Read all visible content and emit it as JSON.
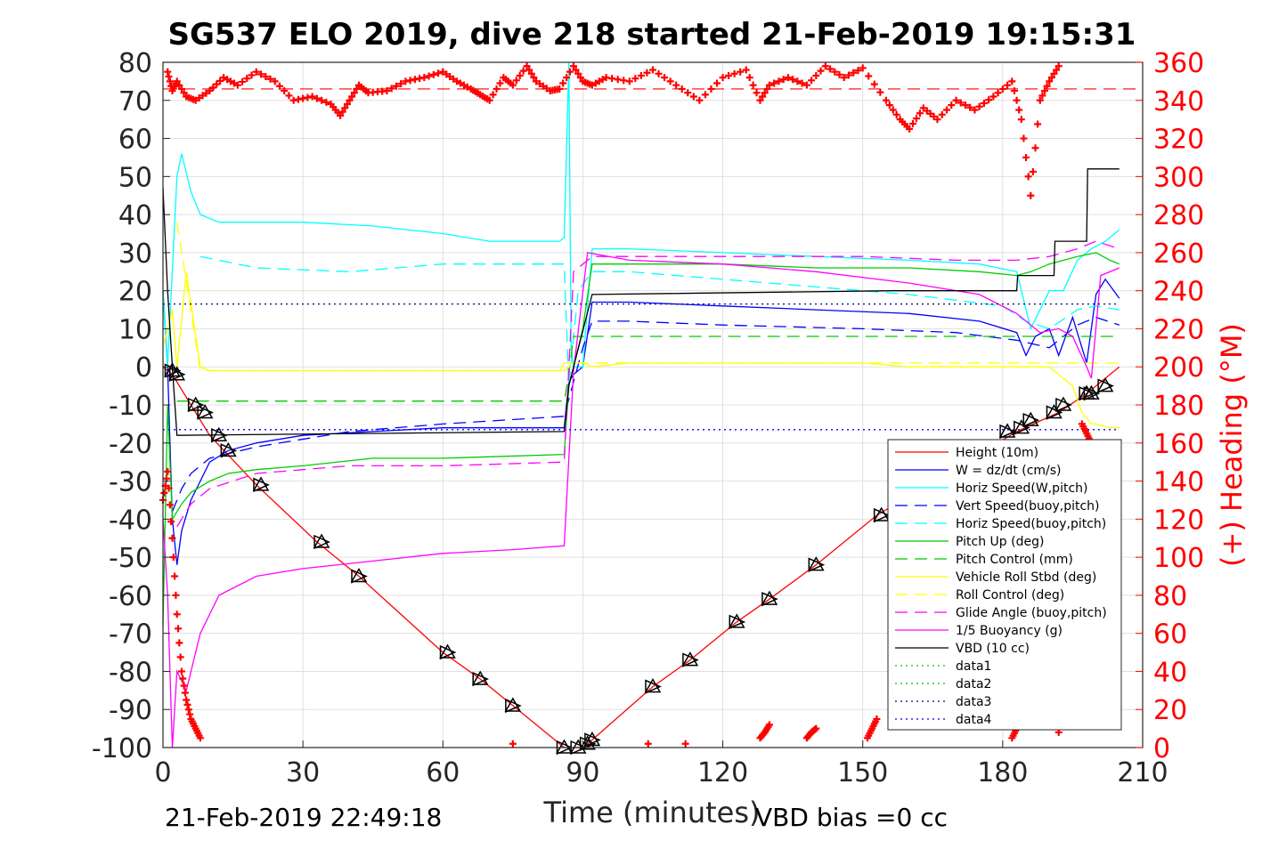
{
  "chart_data": {
    "type": "line",
    "title": "SG537 ELO 2019, dive 218 started 21-Feb-2019 19:15:31",
    "xlabel": "Time (minutes)",
    "ylabel_right": "(+) Heading (°M)",
    "footer_left": "21-Feb-2019 22:49:18",
    "footer_right": "VBD bias =0 cc",
    "xlim": [
      0,
      210
    ],
    "ylim": [
      -100,
      80
    ],
    "ylim_right": [
      0,
      360
    ],
    "xticks": [
      "0",
      "30",
      "60",
      "90",
      "120",
      "150",
      "180",
      "210"
    ],
    "yticks": [
      "80",
      "70",
      "60",
      "50",
      "40",
      "30",
      "20",
      "10",
      "0",
      "-10",
      "-20",
      "-30",
      "-40",
      "-50",
      "-60",
      "-70",
      "-80",
      "-90",
      "-100"
    ],
    "yticks_right": [
      "360",
      "340",
      "320",
      "300",
      "280",
      "260",
      "240",
      "220",
      "200",
      "180",
      "160",
      "140",
      "120",
      "100",
      "80",
      "60",
      "40",
      "20",
      "0"
    ],
    "grid": true,
    "legend_position": "lower-right",
    "legend": [
      {
        "label": "Height (10m)",
        "color": "#ff0000",
        "dash": "solid"
      },
      {
        "label": "W = dz/dt (cm/s)",
        "color": "#0000ff",
        "dash": "solid"
      },
      {
        "label": "Horiz Speed(W,pitch)",
        "color": "#00ffff",
        "dash": "solid"
      },
      {
        "label": "Vert Speed(buoy,pitch)",
        "color": "#0000ff",
        "dash": "dashed"
      },
      {
        "label": "Horiz Speed(buoy,pitch)",
        "color": "#00ffff",
        "dash": "dashed"
      },
      {
        "label": "Pitch Up (deg)",
        "color": "#00cc00",
        "dash": "solid"
      },
      {
        "label": "Pitch Control (mm)",
        "color": "#00cc00",
        "dash": "dashed"
      },
      {
        "label": "Vehicle Roll Stbd (deg)",
        "color": "#ffff00",
        "dash": "solid"
      },
      {
        "label": "Roll Control (deg)",
        "color": "#ffff00",
        "dash": "dashed"
      },
      {
        "label": "Glide Angle (buoy,pitch)",
        "color": "#ff00ff",
        "dash": "dashed"
      },
      {
        "label": "1/5 Buoyancy (g)",
        "color": "#ff00ff",
        "dash": "solid"
      },
      {
        "label": "VBD (10 cc)",
        "color": "#000000",
        "dash": "solid"
      },
      {
        "label": "data1",
        "color": "#00cc00",
        "dash": "dotted"
      },
      {
        "label": "data2",
        "color": "#00cc00",
        "dash": "dotted"
      },
      {
        "label": "data3",
        "color": "#000080",
        "dash": "dotted"
      },
      {
        "label": "data4",
        "color": "#0000ff",
        "dash": "dotted"
      }
    ],
    "series": [
      {
        "name": "Height (10m)",
        "color": "#ff0000",
        "axis": "left",
        "dash": "solid",
        "x": [
          0,
          2,
          10,
          20,
          33,
          42,
          60,
          68,
          75,
          86,
          90,
          92,
          105,
          113,
          123,
          130,
          140,
          153,
          183,
          192,
          198,
          205
        ],
        "y": [
          0,
          -2,
          -18,
          -31,
          -46,
          -55,
          -75,
          -82,
          -89,
          -100,
          -100,
          -98,
          -84,
          -77,
          -67,
          -61,
          -52,
          -39,
          -17,
          -12,
          -7,
          0
        ]
      },
      {
        "name": "W = dz/dt (cm/s)",
        "color": "#0000ff",
        "axis": "left",
        "dash": "solid",
        "x": [
          0,
          1,
          2,
          3,
          4,
          6,
          8,
          10,
          14,
          20,
          30,
          45,
          60,
          86,
          87,
          88,
          90,
          92,
          100,
          120,
          140,
          160,
          175,
          183,
          185,
          187,
          190,
          192,
          195,
          198,
          200,
          202,
          205
        ],
        "y": [
          20,
          0,
          -40,
          -52,
          -43,
          -35,
          -30,
          -25,
          -22,
          -20,
          -18,
          -17,
          -16,
          -16,
          -4,
          -2,
          0,
          17,
          17,
          16,
          15,
          14,
          12,
          9,
          3,
          8,
          10,
          3,
          13,
          1,
          19,
          23,
          18
        ]
      },
      {
        "name": "Horiz Speed(W,pitch)",
        "color": "#00ffff",
        "axis": "left",
        "dash": "solid",
        "x": [
          0,
          1,
          3,
          4,
          6,
          8,
          12,
          20,
          30,
          45,
          60,
          70,
          85,
          86,
          87,
          87.5,
          88,
          90,
          92,
          100,
          120,
          140,
          160,
          175,
          183,
          186,
          190,
          193,
          196,
          199,
          202,
          205
        ],
        "y": [
          20,
          0,
          50,
          56,
          46,
          40,
          38,
          38,
          38,
          37,
          35,
          33,
          33,
          34,
          80,
          5,
          0,
          0,
          31,
          31,
          30,
          29,
          28,
          27,
          25,
          10,
          20,
          20,
          28,
          31,
          33,
          36
        ]
      },
      {
        "name": "Vert Speed(buoy,pitch)",
        "color": "#0000ff",
        "axis": "left",
        "dash": "dashed",
        "x": [
          2,
          4,
          6,
          10,
          20,
          40,
          60,
          86,
          90,
          92,
          100,
          120,
          150,
          170,
          183,
          190,
          196,
          200,
          205
        ],
        "y": [
          -38,
          -32,
          -28,
          -24,
          -21,
          -17,
          -15,
          -13,
          5,
          12,
          12,
          11,
          10,
          9,
          7,
          5,
          11,
          13,
          11
        ]
      },
      {
        "name": "Horiz Speed(buoy,pitch)",
        "color": "#00ffff",
        "axis": "left",
        "dash": "dashed",
        "x": [
          8,
          20,
          40,
          60,
          86,
          87,
          89,
          92,
          100,
          120,
          140,
          160,
          180,
          185,
          190,
          196,
          200,
          205
        ],
        "y": [
          29,
          26,
          25,
          27,
          27,
          -5,
          20,
          25,
          25,
          23,
          21,
          19,
          16,
          12,
          10,
          15,
          16,
          15
        ]
      },
      {
        "name": "Pitch Up (deg)",
        "color": "#00cc00",
        "axis": "left",
        "dash": "solid",
        "x": [
          0,
          1,
          2,
          4,
          6,
          10,
          14,
          20,
          30,
          45,
          60,
          86,
          87,
          88,
          90,
          92,
          100,
          120,
          140,
          160,
          175,
          183,
          186,
          190,
          196,
          200,
          203,
          205
        ],
        "y": [
          -68,
          -10,
          -40,
          -36,
          -33,
          -30,
          -28,
          -27,
          -26,
          -24,
          -24,
          -23,
          -5,
          0,
          10,
          27,
          27,
          27,
          26,
          26,
          25,
          24,
          25,
          27,
          29,
          30,
          28,
          27
        ]
      },
      {
        "name": "Pitch Control (mm)",
        "color": "#00cc00",
        "axis": "left",
        "dash": "dashed",
        "x": [
          3,
          86,
          87,
          88,
          92,
          205
        ],
        "y": [
          -9,
          -9,
          -2,
          8,
          8,
          8
        ]
      },
      {
        "name": "Vehicle Roll Stbd (deg)",
        "color": "#ffff00",
        "axis": "left",
        "dash": "solid",
        "x": [
          0,
          2,
          3,
          5,
          8,
          10,
          20,
          40,
          60,
          85,
          86,
          88,
          90,
          92,
          100,
          120,
          140,
          150,
          160,
          170,
          180,
          190,
          195,
          197,
          199,
          200,
          203,
          205
        ],
        "y": [
          5,
          15,
          0,
          25,
          0,
          -1,
          -1,
          -1,
          -1,
          -1,
          1,
          1,
          1,
          0,
          1,
          1,
          1,
          1,
          0,
          0,
          0,
          0,
          -5,
          -12,
          -15,
          -15,
          -16,
          -16
        ]
      },
      {
        "name": "Roll Control (deg)",
        "color": "#ffff00",
        "axis": "left",
        "dash": "dashed",
        "x": [
          3,
          8,
          86,
          88,
          205
        ],
        "y": [
          38,
          -1,
          -1,
          1,
          1
        ]
      },
      {
        "name": "Glide Angle (buoy,pitch)",
        "color": "#ff00ff",
        "axis": "left",
        "dash": "dashed",
        "x": [
          3,
          6,
          10,
          20,
          40,
          60,
          86,
          88,
          92,
          120,
          150,
          170,
          183,
          190,
          196,
          200,
          205
        ],
        "y": [
          -42,
          -36,
          -32,
          -28,
          -26,
          -26,
          -25,
          25,
          29,
          29,
          29,
          28,
          28,
          29,
          31,
          33,
          31
        ]
      },
      {
        "name": "1/5 Buoyancy (g)",
        "color": "#ff00ff",
        "axis": "left",
        "dash": "solid",
        "x": [
          0,
          1,
          2,
          3,
          5,
          8,
          12,
          20,
          30,
          45,
          60,
          75,
          86,
          88,
          91,
          100,
          120,
          140,
          160,
          175,
          183,
          188,
          192,
          195,
          198,
          199,
          201,
          205
        ],
        "y": [
          -40,
          -60,
          -100,
          -80,
          -85,
          -70,
          -60,
          -55,
          -53,
          -51,
          -49,
          -48,
          -47,
          -1,
          30,
          28,
          27,
          25,
          22,
          19,
          14,
          9,
          10,
          8,
          0,
          -3,
          24,
          26
        ]
      },
      {
        "name": "VBD (10 cc)",
        "color": "#000000",
        "axis": "left",
        "dash": "solid",
        "x": [
          0,
          1,
          2,
          3,
          86,
          87,
          88,
          92,
          156,
          183,
          183.2,
          191,
          191.2,
          198,
          198.2,
          205
        ],
        "y": [
          47,
          20,
          0,
          -18,
          -17,
          -5,
          0,
          19,
          20,
          20,
          24,
          24,
          33,
          33,
          52,
          52
        ]
      },
      {
        "name": "data3",
        "color": "#000080",
        "axis": "left",
        "dash": "dotted",
        "x": [
          0,
          205
        ],
        "y": [
          16.5,
          16.5
        ]
      },
      {
        "name": "data4",
        "color": "#0000ff",
        "axis": "left",
        "dash": "dotted",
        "x": [
          0,
          205
        ],
        "y": [
          -16.5,
          -16.5
        ]
      }
    ],
    "heading": {
      "color": "#ff0000",
      "axis": "right",
      "target": 346,
      "x": [
        1,
        2,
        3,
        5,
        7,
        10,
        13,
        16,
        20,
        24,
        28,
        32,
        36,
        38,
        40,
        42,
        44,
        48,
        52,
        56,
        60,
        63,
        66,
        68,
        70,
        73,
        75,
        78,
        80,
        83,
        85,
        88,
        90,
        92,
        95,
        100,
        105,
        110,
        115,
        120,
        125,
        128,
        130,
        134,
        138,
        142,
        146,
        150,
        155,
        158,
        160,
        163,
        166,
        170,
        174,
        178,
        182,
        184,
        186,
        188,
        190,
        192
      ],
      "y": [
        355,
        345,
        350,
        342,
        340,
        345,
        352,
        348,
        355,
        350,
        340,
        342,
        338,
        332,
        340,
        348,
        344,
        345,
        350,
        352,
        355,
        350,
        346,
        343,
        340,
        352,
        348,
        358,
        350,
        345,
        346,
        358,
        350,
        348,
        352,
        350,
        356,
        348,
        340,
        352,
        356,
        340,
        348,
        352,
        348,
        358,
        352,
        357,
        340,
        330,
        325,
        336,
        330,
        340,
        335,
        342,
        350,
        330,
        290,
        340,
        350,
        358
      ],
      "x2": [
        0,
        1,
        2,
        3,
        4,
        5,
        6,
        7,
        8
      ],
      "y2": [
        130,
        145,
        110,
        70,
        40,
        25,
        15,
        10,
        5
      ],
      "x3": [
        75,
        104,
        112,
        128,
        129,
        130,
        138,
        139,
        140,
        151,
        152,
        153,
        182,
        183,
        192,
        197,
        198,
        199
      ],
      "y3": [
        2,
        2,
        2,
        5,
        8,
        12,
        5,
        8,
        10,
        5,
        10,
        15,
        5,
        10,
        8,
        170,
        165,
        160
      ]
    },
    "triangles": {
      "x": [
        2,
        3,
        7,
        9,
        12,
        14,
        21,
        34,
        42,
        61,
        68,
        75,
        86,
        89,
        91,
        92,
        105,
        113,
        123,
        130,
        140,
        154,
        181,
        184,
        186,
        191,
        193,
        198,
        199,
        202
      ],
      "y": [
        -1,
        -2,
        -10,
        -12,
        -18,
        -22,
        -31,
        -46,
        -55,
        -75,
        -82,
        -89,
        -100,
        -100,
        -99,
        -98,
        -84,
        -77,
        -67,
        -61,
        -52,
        -39,
        -17,
        -16,
        -14,
        -12,
        -10,
        -7,
        -7,
        -5
      ]
    }
  }
}
